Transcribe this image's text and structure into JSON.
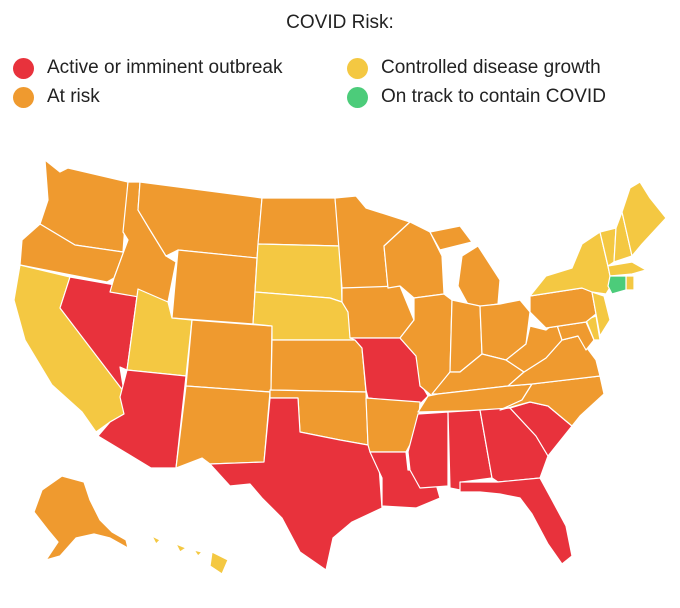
{
  "title": "COVID Risk:",
  "legend": [
    {
      "key": "active",
      "label": "Active or imminent outbreak",
      "color": "#e8323c"
    },
    {
      "key": "risk",
      "label": "At risk",
      "color": "#ef9a2f"
    },
    {
      "key": "controlled",
      "label": "Controlled disease growth",
      "color": "#f4c842"
    },
    {
      "key": "ontrack",
      "label": "On track to contain COVID",
      "color": "#4ccc7a"
    }
  ],
  "map": {
    "type": "choropleth",
    "region": "United States",
    "states": {
      "Washington": "risk",
      "Oregon": "risk",
      "California": "controlled",
      "Nevada": "active",
      "Idaho": "risk",
      "Montana": "risk",
      "Wyoming": "risk",
      "Utah": "controlled",
      "Arizona": "active",
      "Colorado": "risk",
      "New Mexico": "risk",
      "North Dakota": "risk",
      "South Dakota": "controlled",
      "Nebraska": "controlled",
      "Kansas": "risk",
      "Oklahoma": "risk",
      "Texas": "active",
      "Minnesota": "risk",
      "Iowa": "risk",
      "Missouri": "active",
      "Arkansas": "risk",
      "Louisiana": "active",
      "Wisconsin": "risk",
      "Illinois": "risk",
      "Michigan": "risk",
      "Indiana": "risk",
      "Ohio": "risk",
      "Kentucky": "risk",
      "Tennessee": "risk",
      "Mississippi": "active",
      "Alabama": "active",
      "Georgia": "active",
      "Florida": "active",
      "South Carolina": "active",
      "North Carolina": "risk",
      "Virginia": "risk",
      "West Virginia": "risk",
      "Maryland": "risk",
      "Delaware": "controlled",
      "Pennsylvania": "risk",
      "New Jersey": "controlled",
      "New York": "controlled",
      "Connecticut": "ontrack",
      "Rhode Island": "controlled",
      "Massachusetts": "controlled",
      "Vermont": "controlled",
      "New Hampshire": "controlled",
      "Maine": "controlled",
      "Alaska": "risk",
      "Hawaii": "controlled"
    }
  }
}
